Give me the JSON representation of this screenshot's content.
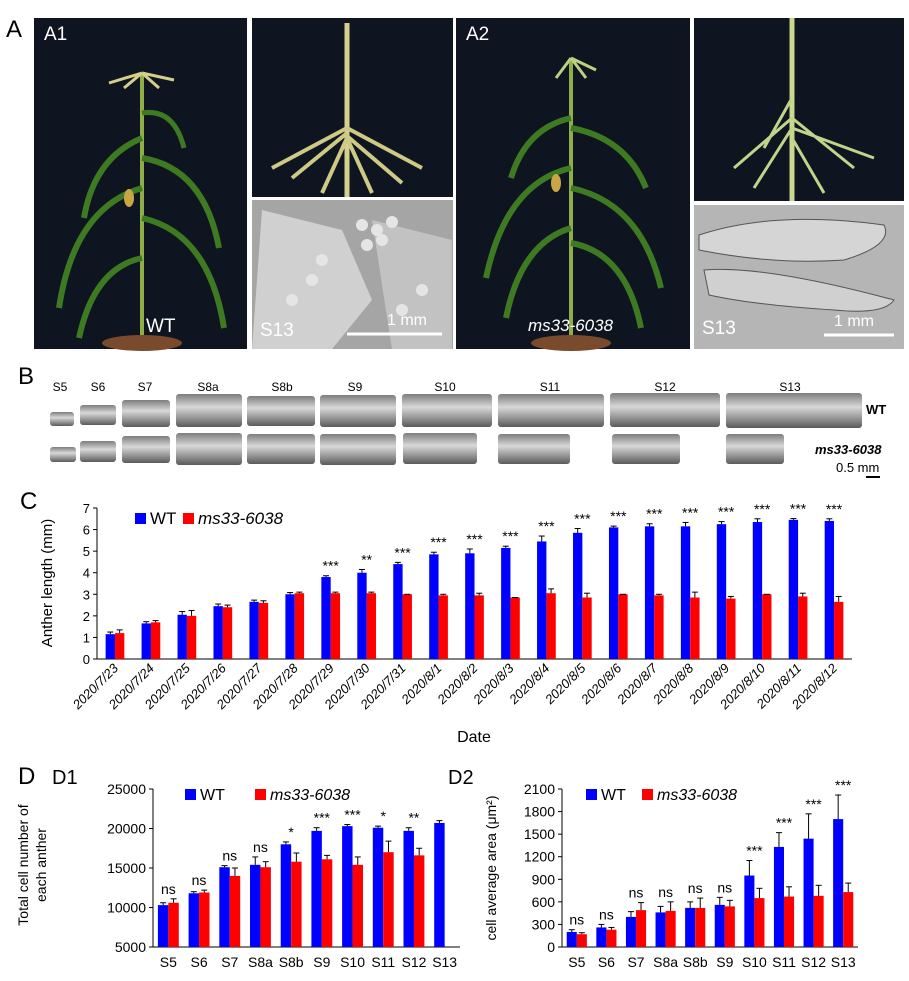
{
  "panels": {
    "A": "A",
    "A1": "A1",
    "A2": "A2",
    "B": "B",
    "C": "C",
    "D": "D",
    "D1": "D1",
    "D2": "D2"
  },
  "panel_a": {
    "wt_label": "WT",
    "mutant_label": "ms33-6038",
    "sem_stage": "S13",
    "scale_bar": "1 mm"
  },
  "panel_b": {
    "stages": [
      "S5",
      "S6",
      "S7",
      "S8a",
      "S8b",
      "S9",
      "S10",
      "S11",
      "S12",
      "S13"
    ],
    "wt_label": "WT",
    "mutant_label": "ms33-6038",
    "scale_bar": "0.5 mm"
  },
  "colors": {
    "wt": "#0000ff",
    "mutant": "#ff0000",
    "photo_bg": "#0e1420"
  },
  "chart_data": [
    {
      "type": "bar",
      "ylabel": "Anther length (mm)",
      "xlabel": "Date",
      "ylim": [
        0,
        7
      ],
      "yticks": [
        0,
        1,
        2,
        3,
        4,
        5,
        6,
        7
      ],
      "categories": [
        "2020/7/23",
        "2020/7/24",
        "2020/7/25",
        "2020/7/26",
        "2020/7/27",
        "2020/7/28",
        "2020/7/29",
        "2020/7/30",
        "2020/7/31",
        "2020/8/1",
        "2020/8/2",
        "2020/8/3",
        "2020/8/4",
        "2020/8/5",
        "2020/8/6",
        "2020/8/7",
        "2020/8/8",
        "2020/8/9",
        "2020/8/10",
        "2020/8/11",
        "2020/8/12"
      ],
      "legend": [
        "WT",
        "ms33-6038"
      ],
      "series": [
        {
          "name": "WT",
          "values": [
            1.15,
            1.65,
            2.05,
            2.45,
            2.65,
            3.0,
            3.8,
            4.0,
            4.4,
            4.85,
            4.9,
            5.15,
            5.45,
            5.85,
            6.1,
            6.15,
            6.15,
            6.25,
            6.35,
            6.45,
            6.4
          ],
          "errors": [
            0.1,
            0.08,
            0.15,
            0.1,
            0.08,
            0.08,
            0.06,
            0.15,
            0.08,
            0.1,
            0.2,
            0.08,
            0.25,
            0.2,
            0.06,
            0.12,
            0.18,
            0.12,
            0.15,
            0.06,
            0.1
          ]
        },
        {
          "name": "ms33-6038",
          "values": [
            1.2,
            1.7,
            2.0,
            2.4,
            2.6,
            3.05,
            3.05,
            3.05,
            3.0,
            2.95,
            2.95,
            2.85,
            3.05,
            2.85,
            3.0,
            2.95,
            2.85,
            2.8,
            3.0,
            2.9,
            2.65
          ],
          "errors": [
            0.15,
            0.08,
            0.25,
            0.1,
            0.1,
            0.05,
            0.05,
            0.05,
            0.0,
            0.05,
            0.1,
            0.0,
            0.2,
            0.2,
            0.0,
            0.05,
            0.25,
            0.1,
            0.0,
            0.15,
            0.25
          ]
        }
      ],
      "significance": [
        "",
        "",
        "",
        "",
        "",
        "",
        "***",
        "**",
        "***",
        "***",
        "***",
        "***",
        "***",
        "***",
        "***",
        "***",
        "***",
        "***",
        "***",
        "***",
        "***"
      ]
    },
    {
      "type": "bar",
      "ylabel_line1": "Total cell number of",
      "ylabel_line2": "each anther",
      "ylim": [
        5000,
        25000
      ],
      "yticks": [
        5000,
        10000,
        15000,
        20000,
        25000
      ],
      "categories": [
        "S5",
        "S6",
        "S7",
        "S8a",
        "S8b",
        "S9",
        "S10",
        "S11",
        "S12",
        "S13"
      ],
      "legend": [
        "WT",
        "ms33-6038"
      ],
      "series": [
        {
          "name": "WT",
          "values": [
            10300,
            11800,
            15100,
            15400,
            18000,
            19700,
            20300,
            20100,
            19700,
            20700
          ],
          "errors": [
            300,
            200,
            200,
            1000,
            300,
            400,
            200,
            200,
            400,
            300
          ]
        },
        {
          "name": "ms33-6038",
          "values": [
            10600,
            11900,
            14000,
            15100,
            15800,
            16100,
            15400,
            17000,
            16600,
            null
          ],
          "errors": [
            500,
            300,
            1000,
            700,
            1100,
            500,
            1000,
            1400,
            900,
            null
          ]
        }
      ],
      "significance": [
        "ns",
        "ns",
        "ns",
        "ns",
        "*",
        "***",
        "***",
        "*",
        "**",
        ""
      ]
    },
    {
      "type": "bar",
      "ylabel": "cell average area (μm²)",
      "ylim": [
        0,
        2100
      ],
      "yticks": [
        0,
        300,
        600,
        900,
        1200,
        1500,
        1800,
        2100
      ],
      "categories": [
        "S5",
        "S6",
        "S7",
        "S8a",
        "S8b",
        "S9",
        "S10",
        "S11",
        "S12",
        "S13"
      ],
      "legend": [
        "WT",
        "ms33-6038"
      ],
      "series": [
        {
          "name": "WT",
          "values": [
            200,
            260,
            400,
            460,
            520,
            560,
            950,
            1330,
            1440,
            1700
          ],
          "errors": [
            30,
            40,
            70,
            80,
            80,
            100,
            200,
            190,
            330,
            320
          ]
        },
        {
          "name": "ms33-6038",
          "values": [
            170,
            230,
            490,
            480,
            520,
            540,
            650,
            670,
            680,
            730
          ],
          "errors": [
            20,
            30,
            100,
            120,
            130,
            80,
            130,
            130,
            140,
            120
          ]
        }
      ],
      "significance": [
        "ns",
        "ns",
        "ns",
        "ns",
        "ns",
        "ns",
        "***",
        "***",
        "***",
        "***"
      ]
    }
  ]
}
